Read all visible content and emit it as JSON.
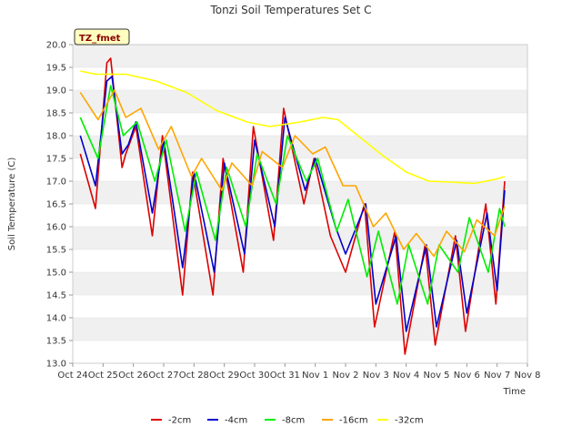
{
  "chart_data": {
    "type": "line",
    "title": "Tonzi Soil Temperatures Set C",
    "xlabel": "Time",
    "ylabel": "Soil Temperature (C)",
    "badge": "TZ_fmet",
    "ylim": [
      13.0,
      20.0
    ],
    "yticks": [
      "13.0",
      "13.5",
      "14.0",
      "14.5",
      "15.0",
      "15.5",
      "16.0",
      "16.5",
      "17.0",
      "17.5",
      "18.0",
      "18.5",
      "19.0",
      "19.5",
      "20.0"
    ],
    "xlim": [
      "2018-10-24",
      "2018-11-08"
    ],
    "xticks": [
      "Oct 24",
      "Oct 25",
      "Oct 26",
      "Oct 27",
      "Oct 28",
      "Oct 29",
      "Oct 30",
      "Oct 31",
      "Nov 1",
      "Nov 2",
      "Nov 3",
      "Nov 4",
      "Nov 5",
      "Nov 6",
      "Nov 7",
      "Nov 8"
    ],
    "grid": "horizontal bands",
    "legend_position": "bottom",
    "colors": {
      "-2cm": "#dd0000",
      "-4cm": "#0000cc",
      "-8cm": "#00ee00",
      "-16cm": "#ffa500",
      "-32cm": "#ffff00"
    },
    "series": [
      {
        "name": "-2cm",
        "x": [
          "Oct 24 06:00",
          "Oct 24 18:00",
          "Oct 25 03:00",
          "Oct 25 06:00",
          "Oct 25 15:00",
          "Oct 25 18:00",
          "Oct 26 02:00",
          "Oct 26 15:00",
          "Oct 26 23:00",
          "Oct 27 15:00",
          "Oct 27 23:00",
          "Oct 28 15:00",
          "Oct 28 23:00",
          "Oct 29 15:00",
          "Oct 29 23:00",
          "Oct 30 15:00",
          "Oct 30 23:00",
          "Oct 31 15:00",
          "Oct 31 23:00",
          "Nov 1 12:00",
          "Nov 2 00:00",
          "Nov 2 15:00",
          "Nov 2 23:00",
          "Nov 3 15:00",
          "Nov 3 23:00",
          "Nov 4 15:00",
          "Nov 4 23:00",
          "Nov 5 15:00",
          "Nov 5 23:00",
          "Nov 6 15:00",
          "Nov 6 23:00",
          "Nov 7 06:00"
        ],
        "values": [
          17.6,
          16.4,
          19.6,
          19.7,
          17.3,
          17.6,
          18.2,
          15.8,
          18.0,
          14.5,
          17.2,
          14.5,
          17.5,
          15.0,
          18.2,
          15.7,
          18.6,
          16.5,
          17.5,
          15.8,
          15.0,
          16.5,
          13.8,
          15.9,
          13.2,
          15.6,
          13.4,
          15.8,
          13.7,
          16.5,
          14.3,
          17.0
        ]
      },
      {
        "name": "-4cm",
        "x": [
          "Oct 24 06:00",
          "Oct 24 18:00",
          "Oct 25 03:00",
          "Oct 25 07:00",
          "Oct 25 15:00",
          "Oct 25 20:00",
          "Oct 26 02:00",
          "Oct 26 15:00",
          "Oct 27 00:00",
          "Oct 27 15:00",
          "Oct 28 00:00",
          "Oct 28 16:00",
          "Oct 29 00:00",
          "Oct 29 16:00",
          "Oct 30 00:00",
          "Oct 30 16:00",
          "Oct 31 00:00",
          "Oct 31 16:00",
          "Nov 1 00:00",
          "Nov 1 16:00",
          "Nov 2 00:00",
          "Nov 2 16:00",
          "Nov 3 00:00",
          "Nov 3 16:00",
          "Nov 4 00:00",
          "Nov 4 16:00",
          "Nov 5 00:00",
          "Nov 5 16:00",
          "Nov 6 00:00",
          "Nov 6 16:00",
          "Nov 7 00:00",
          "Nov 7 06:00"
        ],
        "values": [
          18.0,
          16.9,
          19.2,
          19.3,
          17.6,
          17.8,
          18.3,
          16.3,
          17.9,
          15.1,
          17.2,
          15.0,
          17.4,
          15.4,
          17.9,
          16.0,
          18.4,
          16.8,
          17.5,
          16.0,
          15.4,
          16.5,
          14.3,
          15.8,
          13.7,
          15.6,
          13.8,
          15.7,
          14.1,
          16.3,
          14.6,
          16.8
        ]
      },
      {
        "name": "-8cm",
        "x": [
          "Oct 24 06:00",
          "Oct 24 20:00",
          "Oct 25 06:00",
          "Oct 25 16:00",
          "Oct 26 03:00",
          "Oct 26 17:00",
          "Oct 27 02:00",
          "Oct 27 17:00",
          "Oct 28 02:00",
          "Oct 28 17:00",
          "Oct 29 02:00",
          "Oct 29 17:00",
          "Oct 30 02:00",
          "Oct 30 17:00",
          "Oct 31 02:00",
          "Oct 31 17:00",
          "Nov 1 02:00",
          "Nov 1 17:00",
          "Nov 2 02:00",
          "Nov 2 17:00",
          "Nov 3 02:00",
          "Nov 3 17:00",
          "Nov 4 02:00",
          "Nov 4 17:00",
          "Nov 5 02:00",
          "Nov 5 17:00",
          "Nov 6 02:00",
          "Nov 6 17:00",
          "Nov 7 02:00",
          "Nov 7 06:00"
        ],
        "values": [
          18.4,
          17.5,
          19.1,
          18.0,
          18.3,
          17.0,
          17.9,
          15.9,
          17.2,
          15.7,
          17.3,
          16.0,
          17.6,
          16.5,
          18.0,
          17.0,
          17.5,
          15.9,
          16.6,
          14.9,
          15.9,
          14.3,
          15.6,
          14.3,
          15.6,
          15.0,
          16.2,
          15.0,
          16.4,
          16.0
        ]
      },
      {
        "name": "-16cm",
        "x": [
          "Oct 24 06:00",
          "Oct 24 20:00",
          "Oct 25 09:00",
          "Oct 25 18:00",
          "Oct 26 06:00",
          "Oct 26 20:00",
          "Oct 27 06:00",
          "Oct 27 22:00",
          "Oct 28 06:00",
          "Oct 28 22:00",
          "Oct 29 06:00",
          "Oct 29 22:00",
          "Oct 30 06:00",
          "Oct 30 22:00",
          "Oct 31 08:00",
          "Oct 31 22:00",
          "Nov 1 08:00",
          "Nov 1 22:00",
          "Nov 2 08:00",
          "Nov 2 22:00",
          "Nov 3 08:00",
          "Nov 3 22:00",
          "Nov 4 08:00",
          "Nov 4 22:00",
          "Nov 5 08:00",
          "Nov 5 22:00",
          "Nov 6 08:00",
          "Nov 6 22:00",
          "Nov 7 06:00"
        ],
        "values": [
          18.95,
          18.35,
          19.0,
          18.4,
          18.6,
          17.7,
          18.2,
          17.1,
          17.5,
          16.8,
          17.4,
          16.9,
          17.65,
          17.3,
          18.0,
          17.6,
          17.75,
          16.9,
          16.9,
          16.0,
          16.3,
          15.5,
          15.85,
          15.35,
          15.9,
          15.45,
          16.15,
          15.8,
          16.45
        ]
      },
      {
        "name": "-32cm",
        "x": [
          "Oct 24 06:00",
          "Oct 24 18:00",
          "Oct 25 18:00",
          "Oct 26 18:00",
          "Oct 27 18:00",
          "Oct 28 18:00",
          "Oct 29 18:00",
          "Oct 30 12:00",
          "Oct 31 12:00",
          "Nov 1 06:00",
          "Nov 1 18:00",
          "Nov 2 12:00",
          "Nov 3 06:00",
          "Nov 4 00:00",
          "Nov 4 18:00",
          "Nov 5 12:00",
          "Nov 6 06:00",
          "Nov 7 00:00",
          "Nov 7 06:00"
        ],
        "values": [
          19.42,
          19.35,
          19.35,
          19.2,
          18.95,
          18.55,
          18.3,
          18.2,
          18.3,
          18.4,
          18.35,
          17.95,
          17.55,
          17.2,
          17.0,
          16.98,
          16.95,
          17.05,
          17.1
        ]
      }
    ]
  }
}
